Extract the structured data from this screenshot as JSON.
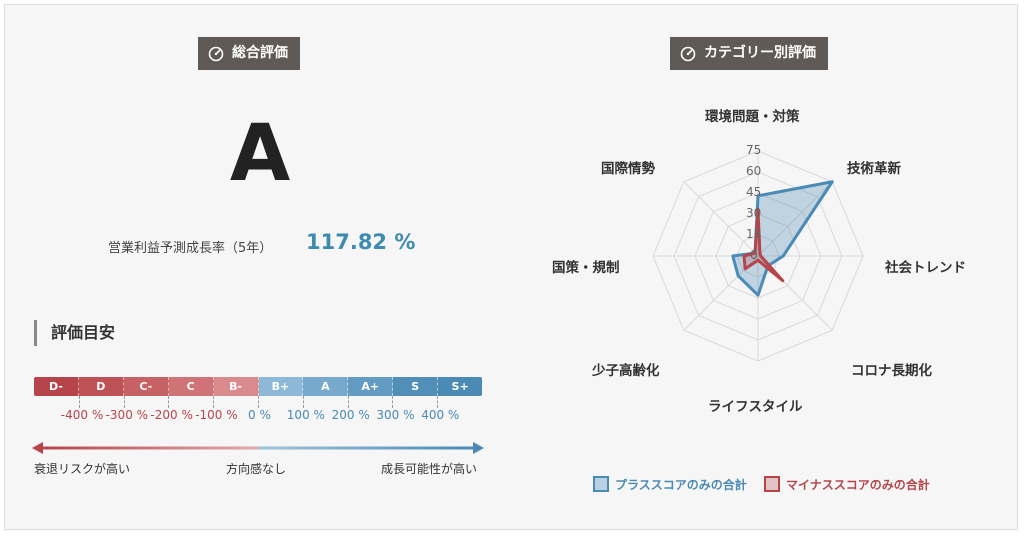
{
  "overall": {
    "title": "総合評価",
    "grade": "A",
    "growth_label": "営業利益予測成長率（5年）",
    "growth_value": "117.82 %"
  },
  "guide": {
    "title": "評価目安",
    "grades": [
      "D-",
      "D",
      "C-",
      "C",
      "B-",
      "B+",
      "A",
      "A+",
      "S",
      "S+"
    ],
    "percents": [
      "-400 %",
      "-300 %",
      "-200 %",
      "-100 %",
      "0 %",
      "100 %",
      "200 %",
      "300 %",
      "400 %"
    ],
    "arrow_left_label": "衰退リスクが高い",
    "arrow_center_label": "方向感なし",
    "arrow_right_label": "成長可能性が高い"
  },
  "category": {
    "title": "カテゴリー別評価"
  },
  "chart_data": {
    "type": "radar",
    "categories": [
      "環境問題・対策",
      "技術革新",
      "社会トレンド",
      "コロナ長期化",
      "ライフスタイル",
      "少子高齢化",
      "国策・規制",
      "国際情勢"
    ],
    "ticks": [
      "0",
      "15",
      "30",
      "45",
      "60",
      "75"
    ],
    "range": [
      0,
      75
    ],
    "series": [
      {
        "name": "プラススコアのみの合計",
        "values": [
          43,
          75,
          18,
          10,
          28,
          20,
          18,
          3
        ],
        "color": "#4a8ab5"
      },
      {
        "name": "マイナススコアのみの合計",
        "values": [
          33,
          2,
          2,
          25,
          3,
          13,
          10,
          3
        ],
        "color": "#b5454b"
      }
    ]
  },
  "colors": {
    "badge_bg": "#5f5a55",
    "negative": "#b5454b",
    "positive": "#4a8ab5",
    "growth_value": "#3d8bb0"
  },
  "icons": {
    "badge": "gauge-icon"
  }
}
